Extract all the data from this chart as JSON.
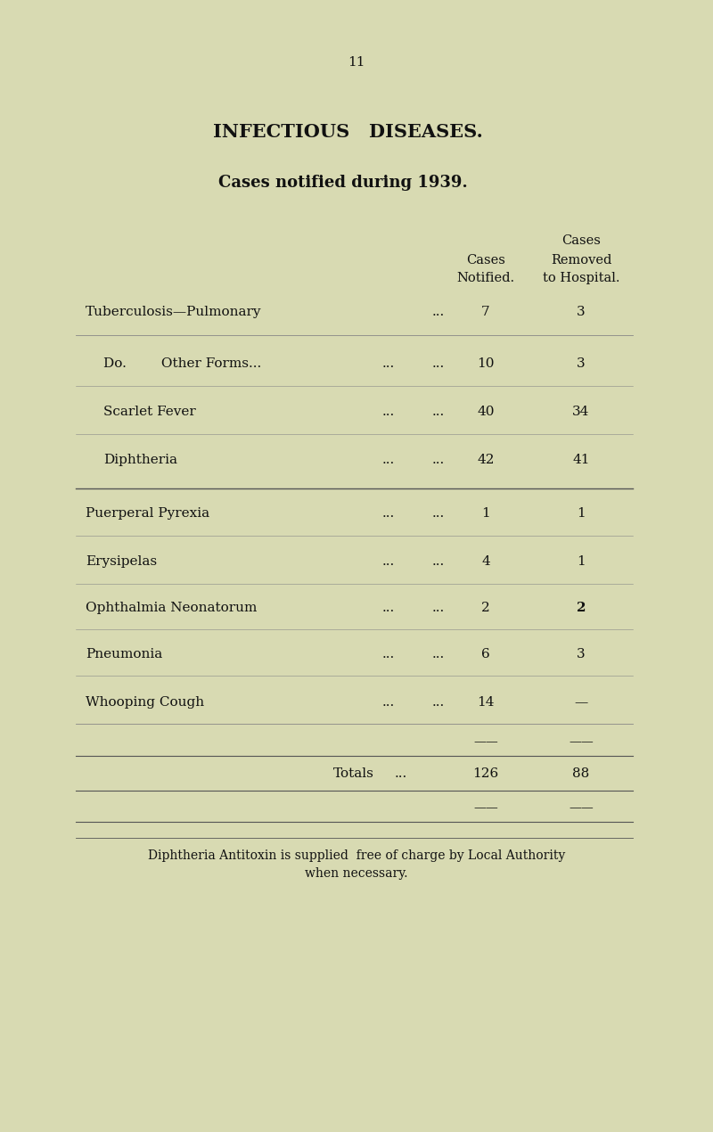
{
  "page_number": "11",
  "title": "INFECTIOUS   DISEASES.",
  "subtitle": "Cases notified during 1939.",
  "col_header_cases_above": "Cases",
  "col_header_cases": "Cases",
  "col_header_notified": "Notified.",
  "col_header_removed": "Removed",
  "col_header_hospital": "to Hospital.",
  "rows": [
    {
      "disease": "Tuberculosis—Pulmonary",
      "dots1": "...",
      "dots2": "...",
      "notified": "7",
      "removed": "3",
      "indent": 0,
      "bold_n": false,
      "bold_r": false
    },
    {
      "disease": "Do.        Other Forms...",
      "dots1": "...",
      "dots2": "...",
      "notified": "10",
      "removed": "3",
      "indent": 1,
      "bold_n": false,
      "bold_r": false
    },
    {
      "disease": "Scarlet Fever",
      "dots1": "...",
      "dots2": "...",
      "notified": "40",
      "removed": "34",
      "indent": 1,
      "bold_n": false,
      "bold_r": false
    },
    {
      "disease": "Diphtheria",
      "dots1": "...",
      "dots2": "...",
      "notified": "42",
      "removed": "41",
      "indent": 1,
      "bold_n": false,
      "bold_r": false
    },
    {
      "disease": "Puerperal Pyrexia",
      "dots1": "...",
      "dots2": "...",
      "notified": "1",
      "removed": "1",
      "indent": 0,
      "bold_n": false,
      "bold_r": false
    },
    {
      "disease": "Erysipelas",
      "dots1": "...",
      "dots2": "...",
      "notified": "4",
      "removed": "1",
      "indent": 0,
      "bold_n": false,
      "bold_r": false
    },
    {
      "disease": "Ophthalmia Neonatorum",
      "dots1": "...",
      "dots2": "...",
      "notified": "2",
      "removed": "2",
      "indent": 0,
      "bold_n": false,
      "bold_r": true
    },
    {
      "disease": "Pneumonia",
      "dots1": "...",
      "dots2": "...",
      "notified": "6",
      "removed": "3",
      "indent": 0,
      "bold_n": false,
      "bold_r": false
    },
    {
      "disease": "Whooping Cough",
      "dots1": "...",
      "dots2": "...",
      "notified": "14",
      "removed": "—",
      "indent": 0,
      "bold_n": false,
      "bold_r": false
    }
  ],
  "totals_label": "Totals",
  "totals_dots": "...",
  "totals_notified": "126",
  "totals_removed": "88",
  "footnote_line1": "Diphtheria Antitoxin is supplied  free of charge by Local Authority",
  "footnote_line2": "when necessary.",
  "bg_color": "#d8dab2",
  "text_color": "#111111",
  "line_color": "#555555",
  "line_color_light": "#888888"
}
